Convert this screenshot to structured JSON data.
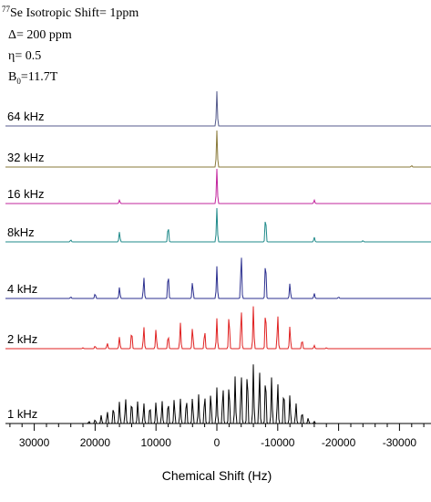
{
  "chart_data": {
    "type": "line",
    "title_lines": [
      {
        "sup": "77",
        "text": "Se Isotropic Shift= 1ppm"
      },
      {
        "text": "Δ= 200 ppm"
      },
      {
        "text": "η= 0.5"
      },
      {
        "prefix": "B",
        "sub": "0",
        "text": "=11.7T"
      }
    ],
    "xlabel": "Chemical Shift (Hz)",
    "xlim": [
      35000,
      -35000
    ],
    "x_reversed": true,
    "grid": false,
    "xticks": [
      {
        "value": 30000,
        "label": "30000"
      },
      {
        "value": 20000,
        "label": "20000"
      },
      {
        "value": 10000,
        "label": "10000"
      },
      {
        "value": 0,
        "label": "0"
      },
      {
        "value": -10000,
        "label": "-10000"
      },
      {
        "value": -20000,
        "label": "-20000"
      },
      {
        "value": -30000,
        "label": "-30000"
      }
    ],
    "series": [
      {
        "name": "64 kHz",
        "color": "#555b8c",
        "peaks": [
          {
            "x": 0,
            "h": 1.0
          }
        ]
      },
      {
        "name": "32 kHz",
        "color": "#8a7a3a",
        "peaks": [
          {
            "x": 0,
            "h": 1.0
          },
          {
            "x": -32000,
            "h": 0.04
          }
        ]
      },
      {
        "name": "16 kHz",
        "color": "#c2249d",
        "peaks": [
          {
            "x": 16000,
            "h": 0.1
          },
          {
            "x": 0,
            "h": 1.0
          },
          {
            "x": -16000,
            "h": 0.1
          }
        ]
      },
      {
        "name": "8kHz",
        "color": "#1f8a8a",
        "peaks": [
          {
            "x": 24000,
            "h": 0.06
          },
          {
            "x": 16000,
            "h": 0.3
          },
          {
            "x": 8000,
            "h": 0.5
          },
          {
            "x": 0,
            "h": 1.0
          },
          {
            "x": -8000,
            "h": 0.8
          },
          {
            "x": -16000,
            "h": 0.14
          },
          {
            "x": -24000,
            "h": 0.04
          }
        ]
      },
      {
        "name": "4 kHz",
        "color": "#2b2f8f",
        "peaks": [
          {
            "x": 24000,
            "h": 0.03
          },
          {
            "x": 20000,
            "h": 0.1
          },
          {
            "x": 16000,
            "h": 0.22
          },
          {
            "x": 12000,
            "h": 0.42
          },
          {
            "x": 8000,
            "h": 0.52
          },
          {
            "x": 4000,
            "h": 0.34
          },
          {
            "x": 0,
            "h": 0.63
          },
          {
            "x": -4000,
            "h": 0.9
          },
          {
            "x": -8000,
            "h": 0.8
          },
          {
            "x": -12000,
            "h": 0.3
          },
          {
            "x": -16000,
            "h": 0.1
          },
          {
            "x": -20000,
            "h": 0.03
          }
        ]
      },
      {
        "name": "2 kHz",
        "color": "#e02020",
        "peaks": [
          {
            "x": 22000,
            "h": 0.02
          },
          {
            "x": 20000,
            "h": 0.06
          },
          {
            "x": 18000,
            "h": 0.12
          },
          {
            "x": 16000,
            "h": 0.25
          },
          {
            "x": 14000,
            "h": 0.4
          },
          {
            "x": 12000,
            "h": 0.47
          },
          {
            "x": 10000,
            "h": 0.42
          },
          {
            "x": 8000,
            "h": 0.3
          },
          {
            "x": 6000,
            "h": 0.55
          },
          {
            "x": 4000,
            "h": 0.47
          },
          {
            "x": 2000,
            "h": 0.4
          },
          {
            "x": 0,
            "h": 0.64
          },
          {
            "x": -2000,
            "h": 0.76
          },
          {
            "x": -4000,
            "h": 0.86
          },
          {
            "x": -6000,
            "h": 0.9
          },
          {
            "x": -8000,
            "h": 0.88
          },
          {
            "x": -10000,
            "h": 0.72
          },
          {
            "x": -12000,
            "h": 0.48
          },
          {
            "x": -14000,
            "h": 0.2
          },
          {
            "x": -16000,
            "h": 0.07
          },
          {
            "x": -18000,
            "h": 0.02
          }
        ]
      },
      {
        "name": "1 kHz",
        "color": "#000000",
        "peaks": [
          {
            "x": 21000,
            "h": 0.03
          },
          {
            "x": 20000,
            "h": 0.06
          },
          {
            "x": 19000,
            "h": 0.12
          },
          {
            "x": 18000,
            "h": 0.18
          },
          {
            "x": 17000,
            "h": 0.26
          },
          {
            "x": 16000,
            "h": 0.32
          },
          {
            "x": 15000,
            "h": 0.37
          },
          {
            "x": 14000,
            "h": 0.35
          },
          {
            "x": 13000,
            "h": 0.33
          },
          {
            "x": 12000,
            "h": 0.3
          },
          {
            "x": 11000,
            "h": 0.28
          },
          {
            "x": 10000,
            "h": 0.32
          },
          {
            "x": 9000,
            "h": 0.33
          },
          {
            "x": 8000,
            "h": 0.34
          },
          {
            "x": 7000,
            "h": 0.37
          },
          {
            "x": 6000,
            "h": 0.36
          },
          {
            "x": 5000,
            "h": 0.38
          },
          {
            "x": 4000,
            "h": 0.4
          },
          {
            "x": 3000,
            "h": 0.42
          },
          {
            "x": 2000,
            "h": 0.44
          },
          {
            "x": 1000,
            "h": 0.47
          },
          {
            "x": 0,
            "h": 0.52
          },
          {
            "x": -1000,
            "h": 0.56
          },
          {
            "x": -2000,
            "h": 0.6
          },
          {
            "x": -3000,
            "h": 0.68
          },
          {
            "x": -4000,
            "h": 0.75
          },
          {
            "x": -5000,
            "h": 0.82
          },
          {
            "x": -6000,
            "h": 0.86
          },
          {
            "x": -7000,
            "h": 0.8
          },
          {
            "x": -8000,
            "h": 0.74
          },
          {
            "x": -9000,
            "h": 0.68
          },
          {
            "x": -10000,
            "h": 0.6
          },
          {
            "x": -11000,
            "h": 0.52
          },
          {
            "x": -12000,
            "h": 0.42
          },
          {
            "x": -13000,
            "h": 0.3
          },
          {
            "x": -14000,
            "h": 0.18
          },
          {
            "x": -15000,
            "h": 0.08
          },
          {
            "x": -16000,
            "h": 0.03
          }
        ]
      }
    ]
  }
}
